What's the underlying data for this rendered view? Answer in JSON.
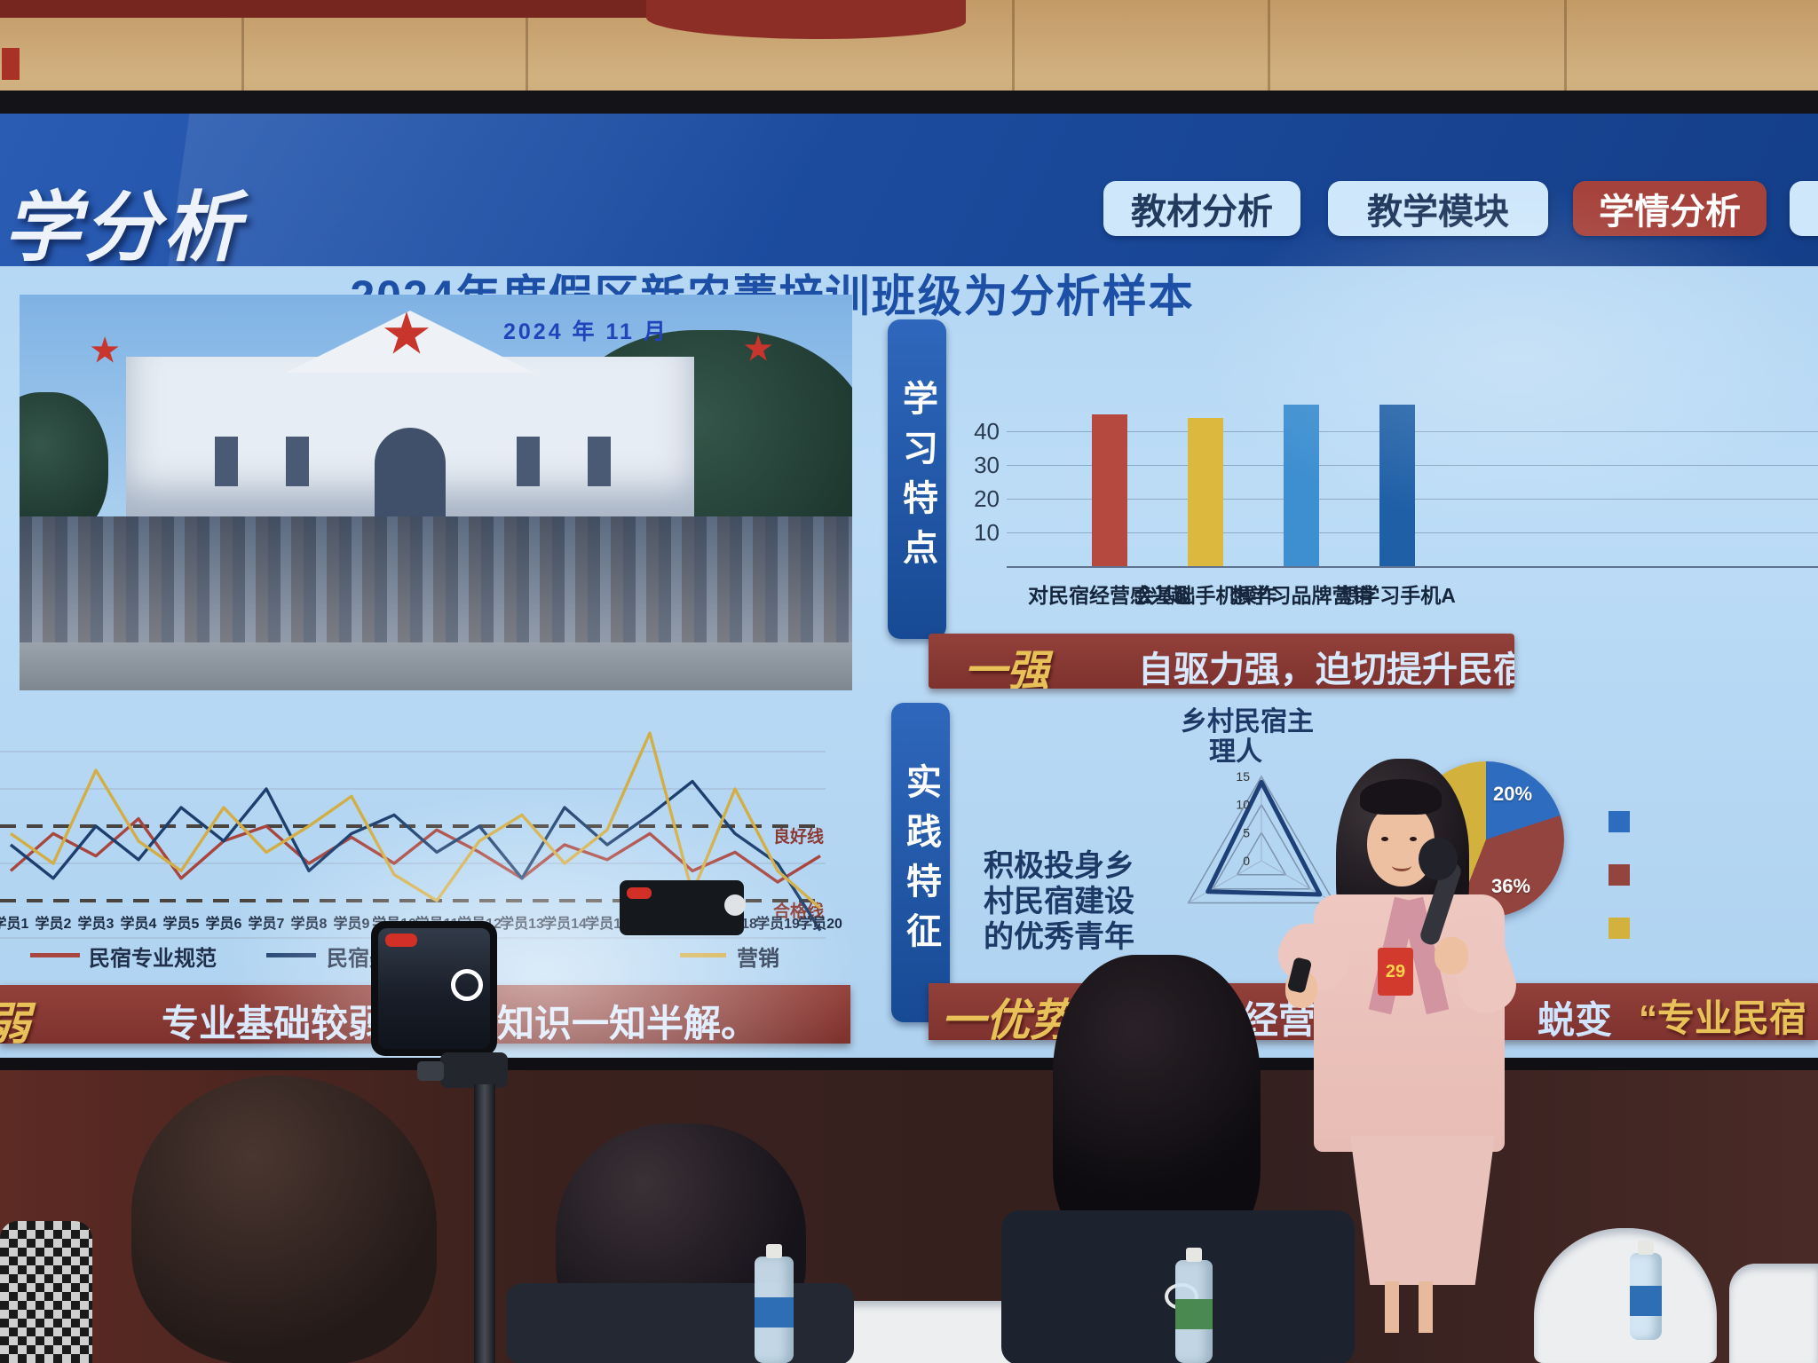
{
  "screen": {
    "header": {
      "title_partial": "学分析",
      "tabs": [
        {
          "label": "教材分析",
          "active": false
        },
        {
          "label": "教学模块",
          "active": false
        },
        {
          "label": "学情分析",
          "active": true
        },
        {
          "label": "",
          "active": false
        }
      ]
    },
    "slide_title": "2024年度假区新农菁培训班级为分析样本",
    "photo_date": "2024 年 11 月",
    "learning": {
      "banner": "学习特点",
      "badge": "一强",
      "summary": "自驱力强，迫切提升民宿品质。"
    },
    "practice": {
      "banner": "实践特征",
      "radar_title_l1": "乡村民宿主",
      "radar_title_l2": "理人",
      "side_text_l1": "积极投身乡",
      "side_text_l2": "村民宿建设",
      "side_text_l3": "的优秀青年",
      "badge": "一优势",
      "summary_left_visible": "经营经验",
      "summary_mid": "蜕变",
      "summary_right_partial": "“专业民宿"
    },
    "weak": {
      "badge_partial": "弱",
      "summary": "专业基础较弱，专业知识一知半解。"
    }
  },
  "chart_data": [
    {
      "type": "bar",
      "title": "学习特点调查",
      "categories": [
        "对民宿经营感兴趣",
        "会基础手机操作",
        "想学习品牌营销",
        "想学习手机A"
      ],
      "values": [
        45,
        44,
        48,
        48
      ],
      "colors": [
        "#b5483f",
        "#dcb93e",
        "#3e8fd0",
        "#1f5fa6"
      ],
      "yticks": [
        10,
        20,
        30,
        40
      ],
      "ylim": [
        0,
        50
      ]
    },
    {
      "type": "line",
      "categories": [
        "学员1",
        "学员2",
        "学员3",
        "学员4",
        "学员5",
        "学员6",
        "学员7",
        "学员8",
        "学员9",
        "学员10",
        "学员11",
        "学员12",
        "学员13",
        "学员14",
        "学员15",
        "学员16",
        "学员17",
        "学员18",
        "学员19",
        "学员20"
      ],
      "series": [
        {
          "name": "民宿专业规范",
          "color": "#a8453f",
          "values": [
            68,
            78,
            72,
            82,
            66,
            76,
            80,
            70,
            77,
            70,
            79,
            73,
            66,
            75,
            71,
            78,
            68,
            73,
            65,
            72
          ]
        },
        {
          "name": "民宿美学素养",
          "color": "#1c3f6e",
          "values": [
            75,
            66,
            80,
            71,
            85,
            76,
            90,
            68,
            78,
            83,
            73,
            80,
            66,
            85,
            75,
            83,
            92,
            78,
            70,
            52
          ]
        },
        {
          "name": "营销",
          "color": "#d2ae45",
          "values": [
            78,
            70,
            95,
            76,
            68,
            85,
            73,
            80,
            88,
            67,
            60,
            76,
            83,
            70,
            79,
            105,
            62,
            90,
            68,
            58
          ]
        }
      ],
      "reference_lines": [
        {
          "label": "良好线",
          "value": 80
        },
        {
          "label": "合格线",
          "value": 60
        }
      ]
    },
    {
      "type": "radar",
      "title": "乡村民宿主理人",
      "ticks": [
        0,
        5,
        10,
        15
      ],
      "max": 15,
      "values": [
        14,
        11,
        12
      ]
    },
    {
      "type": "pie",
      "slices": [
        {
          "label": "20%",
          "value": 20,
          "color": "#2e6cc0"
        },
        {
          "label": "36%",
          "value": 36,
          "color": "#94443e"
        },
        {
          "label": "44%",
          "value": 44,
          "color": "#d2b13d"
        }
      ]
    }
  ],
  "presenter": {
    "badge_number": "29"
  }
}
